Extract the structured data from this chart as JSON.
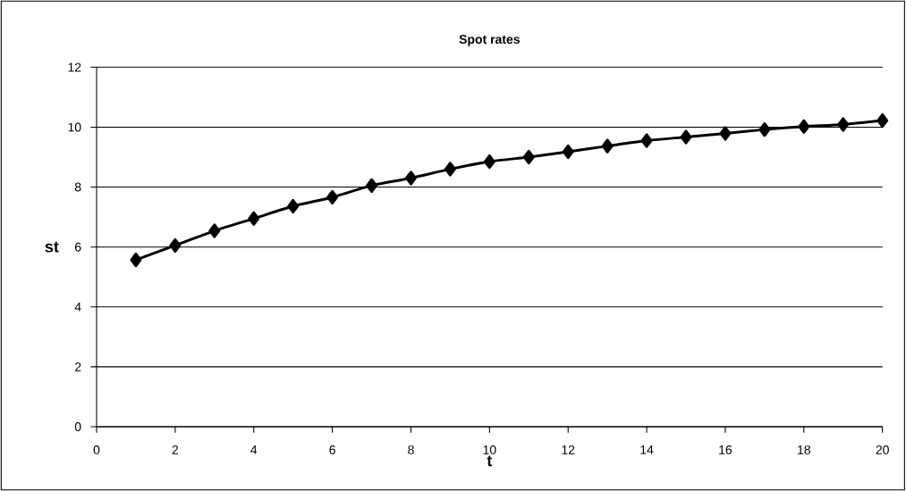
{
  "chart_data": {
    "type": "line",
    "title": "Spot rates",
    "xlabel": "t",
    "ylabel": "st",
    "x": [
      1,
      2,
      3,
      4,
      5,
      6,
      7,
      8,
      9,
      10,
      11,
      12,
      13,
      14,
      15,
      16,
      17,
      18,
      19,
      20
    ],
    "series": [
      {
        "color": "#000000",
        "values": [
          5.57,
          6.05,
          6.54,
          6.95,
          7.36,
          7.66,
          8.05,
          8.3,
          8.6,
          8.85,
          9.0,
          9.18,
          9.37,
          9.55,
          9.67,
          9.79,
          9.92,
          10.02,
          10.09,
          10.22
        ]
      }
    ],
    "xlim": [
      0,
      20
    ],
    "xticks": [
      0,
      2,
      4,
      6,
      8,
      10,
      12,
      14,
      16,
      18,
      20
    ],
    "ylim": [
      0,
      12
    ],
    "yticks": [
      0,
      2,
      4,
      6,
      8,
      10,
      12
    ],
    "grid": "y",
    "marker": "diamond",
    "line_style": "solid"
  }
}
